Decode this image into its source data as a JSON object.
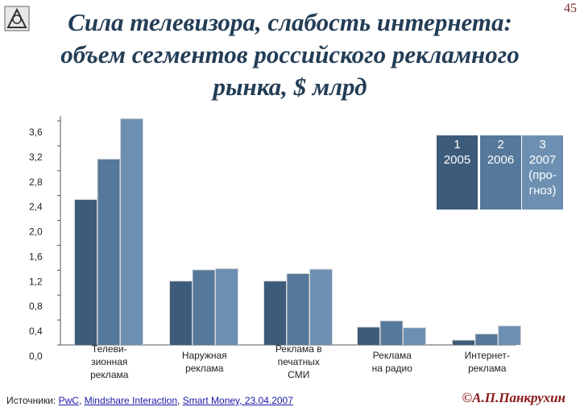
{
  "page": {
    "slide_number": "45",
    "title_lines": [
      "Сила телевизора, слабость интернета:",
      "объем сегментов российского рекламного",
      "рынка, $ млрд"
    ],
    "source_prefix": "Источники:",
    "sources": [
      "PwC",
      "Mindshare Interaction",
      "Smart Money, 23.04.2007"
    ],
    "author": "©А.П.Панкрухин"
  },
  "chart_data": {
    "type": "bar",
    "title": "Сила телевизора, слабость интернета: объем сегментов российского рекламного рынка, $ млрд",
    "categories": [
      [
        "Теле­ви-",
        "зионная",
        "реклама"
      ],
      [
        "Наружная",
        "реклама"
      ],
      [
        "Реклама в",
        "печатных",
        "СМИ"
      ],
      [
        "Реклама",
        "на радио"
      ],
      [
        "Интернет-",
        "реклама"
      ]
    ],
    "series": [
      {
        "name": [
          "1",
          "2005"
        ],
        "color": "#3d5b7a",
        "values": [
          2.33,
          1.02,
          1.02,
          0.28,
          0.07
        ]
      },
      {
        "name": [
          "2",
          "2006"
        ],
        "color": "#56789a",
        "values": [
          2.98,
          1.2,
          1.14,
          0.38,
          0.17
        ]
      },
      {
        "name": [
          "3",
          "2007",
          "(про-",
          "гноз)"
        ],
        "color": "#6d90b2",
        "values": [
          3.63,
          1.22,
          1.21,
          0.27,
          0.3
        ]
      }
    ],
    "yticks": [
      "3,6",
      "3,2",
      "2,8",
      "2,4",
      "2,0",
      "1,6",
      "1,2",
      "0,8",
      "0,4",
      "0,0"
    ],
    "ylim": [
      0,
      3.6
    ],
    "legend_position": "top-right",
    "grid": false
  }
}
